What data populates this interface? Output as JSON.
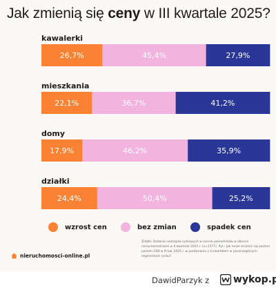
{
  "title": {
    "prefix": "Jak zmienią się ",
    "bold": "ceny",
    "suffix": " w III kwartale 2025?"
  },
  "colors": {
    "wzrost": "#fa8232",
    "bez_zmian": "#f2b3de",
    "spadek": "#2b3796",
    "background": "#fbf9f6"
  },
  "chart_data": {
    "type": "bar",
    "orientation": "horizontal",
    "stacked": true,
    "categories": [
      "kawalerki",
      "mieszkania",
      "domy",
      "działki"
    ],
    "series": [
      {
        "name": "wzrost cen",
        "values": [
          26.7,
          22.1,
          17.9,
          24.4
        ],
        "labels": [
          "26,7%",
          "22,1%",
          "17,9%",
          "24,4%"
        ],
        "color": "#fa8232",
        "label_color": "#ffffff"
      },
      {
        "name": "bez zmian",
        "values": [
          45.4,
          36.7,
          46.2,
          50.4
        ],
        "labels": [
          "45,4%",
          "36,7%",
          "46,2%",
          "50,4%"
        ],
        "color": "#f2b3de",
        "label_color": "#ffffff"
      },
      {
        "name": "spadek cen",
        "values": [
          27.9,
          41.2,
          35.9,
          25.2
        ],
        "labels": [
          "27,9%",
          "41,2%",
          "35,9%",
          "25,2%"
        ],
        "color": "#2b3796",
        "label_color": "#ffffff"
      }
    ],
    "xlim": [
      0,
      100
    ],
    "legend_position": "bottom"
  },
  "legend": [
    {
      "label": "wzrost cen",
      "color": "#fa8232"
    },
    {
      "label": "bez zmian",
      "color": "#f2b3de"
    },
    {
      "label": "spadek cen",
      "color": "#2b3796"
    }
  ],
  "brand": {
    "name": "nieruchomosci-online.pl",
    "icon": "house-icon"
  },
  "source_note": "Źródło: Badanie nastrojów rynkowych w ocenie pośredników w obrocie nieruchomościami w II kwartale 2025 r. (n=1577). Pyt.: Jak może zmienić się poziom poziom CEN w III kw. 2025 r. w porównaniu z II kwartałem w poszczególnych segmentach rynku?",
  "watermark": {
    "user": "DawidParzyk",
    "separator": "z",
    "site": "wykop.pl",
    "icon": "wykop-logo-icon"
  }
}
